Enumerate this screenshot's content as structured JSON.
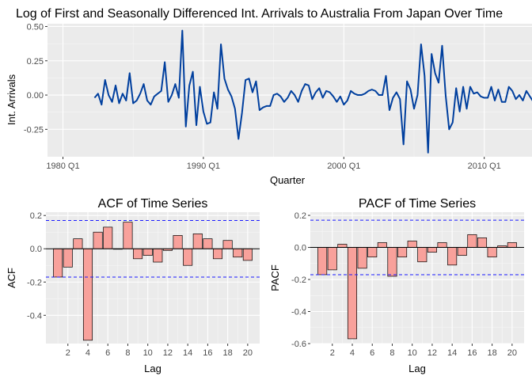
{
  "chart_data": [
    {
      "type": "line",
      "title": "Log of First and Seasonally Differenced Int. Arrivals to Australia From Japan Over Time",
      "xlabel": "Quarter",
      "ylabel": "Int. Arrivals",
      "xlim": [
        1978.9,
        2013.4
      ],
      "ylim": [
        -0.45,
        0.52
      ],
      "x_ticks": [
        1980,
        1990,
        2000,
        2010
      ],
      "x_tick_labels": [
        "1980 Q1",
        "1990 Q1",
        "2000 Q1",
        "2010 Q1"
      ],
      "y_ticks": [
        -0.25,
        0,
        0.25,
        0.5
      ],
      "y_tick_labels": [
        "-0.25",
        "0.00",
        "0.25",
        "0.50"
      ],
      "line_color": "#003f9e",
      "series": [
        {
          "x_start": 1982.25,
          "step": 0.25,
          "values": [
            -0.02,
            0.01,
            -0.07,
            0.11,
            0.0,
            -0.05,
            0.07,
            -0.06,
            0.01,
            -0.04,
            0.16,
            -0.06,
            -0.04,
            0.01,
            0.08,
            -0.04,
            -0.07,
            -0.01,
            0.01,
            0.03,
            0.24,
            -0.05,
            0.0,
            0.08,
            -0.02,
            0.47,
            -0.23,
            0.07,
            0.17,
            -0.22,
            0.06,
            -0.12,
            -0.21,
            -0.2,
            0.02,
            -0.1,
            0.37,
            0.12,
            0.04,
            -0.01,
            -0.1,
            -0.32,
            -0.13,
            0.11,
            0.12,
            0.02,
            0.1,
            -0.11,
            -0.09,
            -0.08,
            -0.08,
            0.0,
            0.01,
            -0.01,
            -0.05,
            -0.02,
            0.03,
            0.0,
            -0.05,
            0.03,
            0.08,
            0.07,
            -0.03,
            0.02,
            0.05,
            -0.02,
            0.03,
            0.02,
            -0.01,
            -0.05,
            -0.01,
            -0.07,
            -0.04,
            0.03,
            0.01,
            0.0,
            0.0,
            0.01,
            0.03,
            0.04,
            0.03,
            0.0,
            0.0,
            0.14,
            -0.11,
            -0.02,
            0.02,
            -0.03,
            -0.36,
            0.1,
            0.04,
            -0.1,
            0.0,
            0.37,
            0.14,
            -0.42,
            0.3,
            0.16,
            0.09,
            0.36,
            0.0,
            -0.25,
            -0.2,
            0.05,
            -0.12,
            0.06,
            -0.1,
            0.06,
            0.01,
            0.02,
            -0.01,
            -0.02,
            -0.02,
            0.06,
            -0.04,
            0.04,
            -0.05,
            -0.05,
            0.06,
            0.03,
            -0.03,
            0.0,
            -0.04,
            0.03,
            -0.01,
            -0.05,
            0.01,
            0.0,
            0.08,
            0.06,
            -0.04,
            0.0,
            0.0,
            0.17,
            0.17,
            0.1,
            0.2,
            -0.24,
            -0.22,
            -0.2,
            -0.1,
            0.14,
            0.12,
            0.12,
            0.15,
            0.05,
            -0.05
          ]
        }
      ]
    },
    {
      "type": "bar",
      "title": "ACF of Time Series",
      "xlabel": "Lag",
      "ylabel": "ACF",
      "xlim": [
        -0.2,
        21.2
      ],
      "ylim": [
        -0.57,
        0.22
      ],
      "x_ticks": [
        2,
        4,
        6,
        8,
        10,
        12,
        14,
        16,
        18,
        20
      ],
      "y_ticks": [
        -0.4,
        -0.2,
        0.0,
        0.2
      ],
      "y_tick_labels": [
        "-0.4",
        "-0.2",
        "0.0",
        "0.2"
      ],
      "confidence_limit": 0.17,
      "bar_fill": "#f8a19b",
      "bar_stroke": "#000000",
      "ci_color": "#1a1aff",
      "lags": [
        1,
        2,
        3,
        4,
        5,
        6,
        7,
        8,
        9,
        10,
        11,
        12,
        13,
        14,
        15,
        16,
        17,
        18,
        19,
        20
      ],
      "values": [
        -0.17,
        -0.11,
        0.06,
        -0.55,
        0.1,
        0.13,
        0.0,
        0.16,
        -0.06,
        -0.04,
        -0.08,
        -0.01,
        0.08,
        -0.1,
        0.09,
        0.06,
        -0.06,
        0.05,
        -0.05,
        -0.07
      ]
    },
    {
      "type": "bar",
      "title": "PACF of Time Series",
      "xlabel": "Lag",
      "ylabel": "PACF",
      "xlim": [
        -0.2,
        21.2
      ],
      "ylim": [
        -0.6,
        0.22
      ],
      "x_ticks": [
        2,
        4,
        6,
        8,
        10,
        12,
        14,
        16,
        18,
        20
      ],
      "y_ticks": [
        -0.6,
        -0.4,
        -0.2,
        0.0,
        0.2
      ],
      "y_tick_labels": [
        "-0.6",
        "-0.4",
        "-0.2",
        "0.0",
        "0.2"
      ],
      "confidence_limit": 0.17,
      "bar_fill": "#f8a19b",
      "bar_stroke": "#000000",
      "ci_color": "#1a1aff",
      "lags": [
        1,
        2,
        3,
        4,
        5,
        6,
        7,
        8,
        9,
        10,
        11,
        12,
        13,
        14,
        15,
        16,
        17,
        18,
        19,
        20
      ],
      "values": [
        -0.17,
        -0.14,
        0.02,
        -0.57,
        -0.13,
        -0.06,
        0.03,
        -0.18,
        -0.06,
        0.04,
        -0.09,
        -0.03,
        0.03,
        -0.11,
        -0.05,
        0.08,
        0.06,
        -0.06,
        0.01,
        0.03
      ]
    }
  ]
}
